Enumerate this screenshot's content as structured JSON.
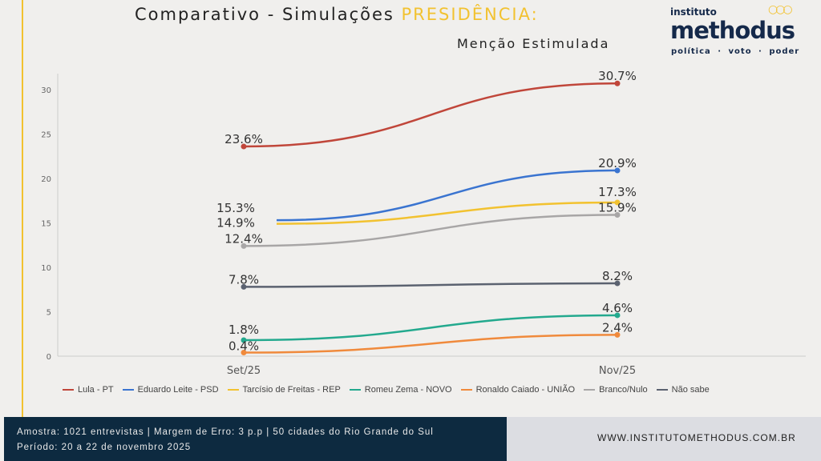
{
  "header": {
    "title_part1": "Comparativo - Simulações ",
    "title_part2": "PRESIDÊNCIA:",
    "subtitle": "Menção Estimulada"
  },
  "logo": {
    "top": "instituto",
    "name": "methodus",
    "tagline": "política · voto · poder"
  },
  "footer": {
    "line1": "Amostra: 1021 entrevistas | Margem de Erro: 3 p.p | 50 cidades do Rio Grande do Sul",
    "line2": "Período: 20 a 22 de novembro 2025",
    "website": "WWW.INSTITUTOMETHODUS.COM.BR"
  },
  "chart_data": {
    "type": "line",
    "categories": [
      "Set/25",
      "Nov/25"
    ],
    "ylim": [
      0,
      32
    ],
    "yticks": [
      0,
      5,
      10,
      15,
      20,
      25,
      30
    ],
    "legend_position": "bottom",
    "series": [
      {
        "name": "Lula - PT",
        "color": "#c0463a",
        "values": [
          23.6,
          30.7
        ],
        "labels": [
          "23.6%",
          "30.7%"
        ]
      },
      {
        "name": "Eduardo Leite - PSD",
        "color": "#3a74d0",
        "values": [
          15.3,
          20.9
        ],
        "labels": [
          "15.3%",
          "20.9%"
        ]
      },
      {
        "name": "Tarcísio de Freitas - REP",
        "color": "#f2c230",
        "values": [
          14.9,
          17.3
        ],
        "labels": [
          "14.9%",
          "17.3%"
        ]
      },
      {
        "name": "Romeu Zema - NOVO",
        "color": "#23a98e",
        "values": [
          1.8,
          4.6
        ],
        "labels": [
          "1.8%",
          "4.6%"
        ]
      },
      {
        "name": "Ronaldo Caiado - UNIÃO",
        "color": "#f08a3c",
        "values": [
          0.4,
          2.4
        ],
        "labels": [
          "0.4%",
          "2.4%"
        ]
      },
      {
        "name": "Branco/Nulo",
        "color": "#a8a6a6",
        "values": [
          12.4,
          15.9
        ],
        "labels": [
          "12.4%",
          "15.9%"
        ]
      },
      {
        "name": "Não sabe",
        "color": "#5b6270",
        "values": [
          7.8,
          8.2
        ],
        "labels": [
          "7.8%",
          "8.2%"
        ]
      }
    ]
  }
}
